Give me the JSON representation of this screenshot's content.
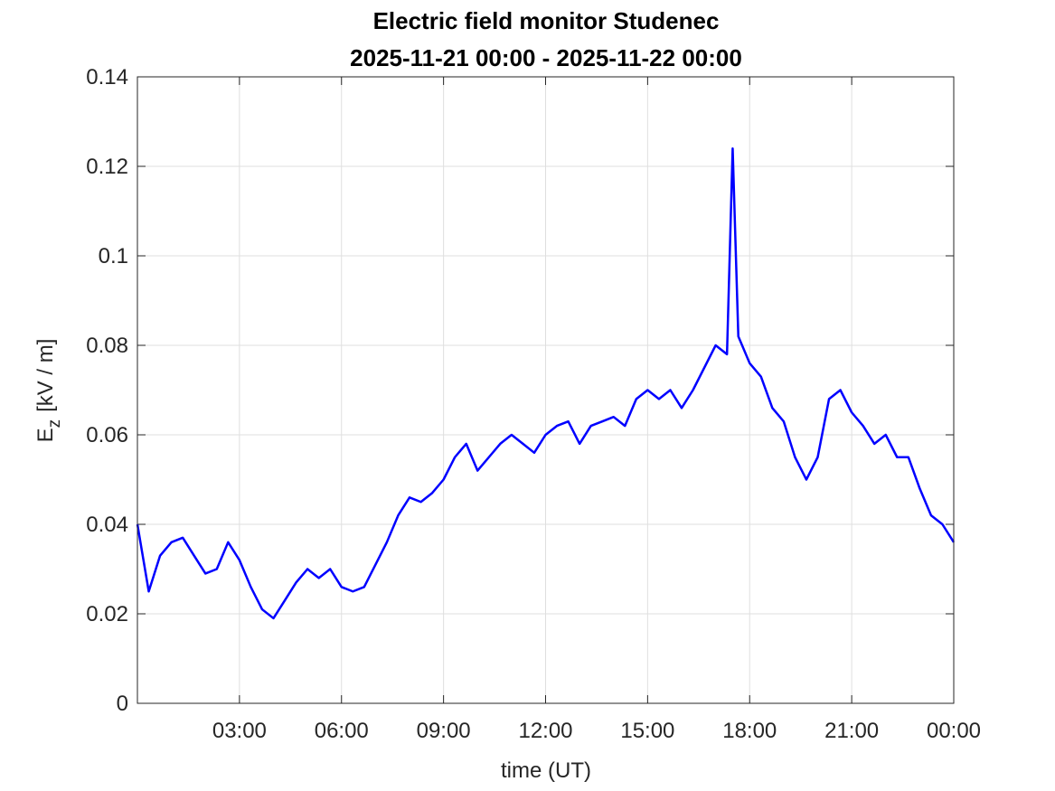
{
  "chart_data": {
    "type": "line",
    "title": "Electric field monitor Studenec",
    "subtitle": "2025-11-21 00:00 - 2025-11-22 00:00",
    "xlabel": "time (UT)",
    "ylabel": {
      "symbol": "E",
      "subscript": "z",
      "unit": "[kV / m]"
    },
    "x": [
      0,
      20,
      40,
      60,
      80,
      100,
      120,
      140,
      160,
      180,
      200,
      220,
      240,
      260,
      280,
      300,
      320,
      340,
      360,
      380,
      400,
      420,
      440,
      460,
      480,
      500,
      520,
      540,
      560,
      580,
      600,
      620,
      640,
      660,
      680,
      700,
      720,
      740,
      760,
      780,
      800,
      820,
      840,
      860,
      880,
      900,
      920,
      940,
      960,
      980,
      1000,
      1020,
      1040,
      1050,
      1060,
      1080,
      1100,
      1120,
      1140,
      1160,
      1180,
      1200,
      1220,
      1240,
      1260,
      1280,
      1300,
      1320,
      1340,
      1360,
      1380,
      1400,
      1420,
      1440
    ],
    "series": [
      {
        "name": "Ez",
        "color": "#0000ff",
        "values": [
          0.04,
          0.025,
          0.033,
          0.036,
          0.037,
          0.033,
          0.029,
          0.03,
          0.036,
          0.032,
          0.026,
          0.021,
          0.019,
          0.023,
          0.027,
          0.03,
          0.028,
          0.03,
          0.026,
          0.025,
          0.026,
          0.031,
          0.036,
          0.042,
          0.046,
          0.045,
          0.047,
          0.05,
          0.055,
          0.058,
          0.052,
          0.055,
          0.058,
          0.06,
          0.058,
          0.056,
          0.06,
          0.062,
          0.063,
          0.058,
          0.062,
          0.063,
          0.064,
          0.062,
          0.068,
          0.07,
          0.068,
          0.07,
          0.066,
          0.07,
          0.075,
          0.08,
          0.078,
          0.124,
          0.082,
          0.076,
          0.073,
          0.066,
          0.063,
          0.055,
          0.05,
          0.055,
          0.068,
          0.07,
          0.065,
          0.062,
          0.058,
          0.06,
          0.055,
          0.055,
          0.048,
          0.042,
          0.04,
          0.036
        ]
      }
    ],
    "xlim": [
      0,
      1440
    ],
    "xticks": [
      {
        "value": 180,
        "label": "03:00"
      },
      {
        "value": 360,
        "label": "06:00"
      },
      {
        "value": 540,
        "label": "09:00"
      },
      {
        "value": 720,
        "label": "12:00"
      },
      {
        "value": 900,
        "label": "15:00"
      },
      {
        "value": 1080,
        "label": "18:00"
      },
      {
        "value": 1260,
        "label": "21:00"
      },
      {
        "value": 1440,
        "label": "00:00"
      }
    ],
    "ylim": [
      0,
      0.14
    ],
    "yticks": [
      0,
      0.02,
      0.04,
      0.06,
      0.08,
      0.1,
      0.12,
      0.14
    ],
    "grid": true
  }
}
